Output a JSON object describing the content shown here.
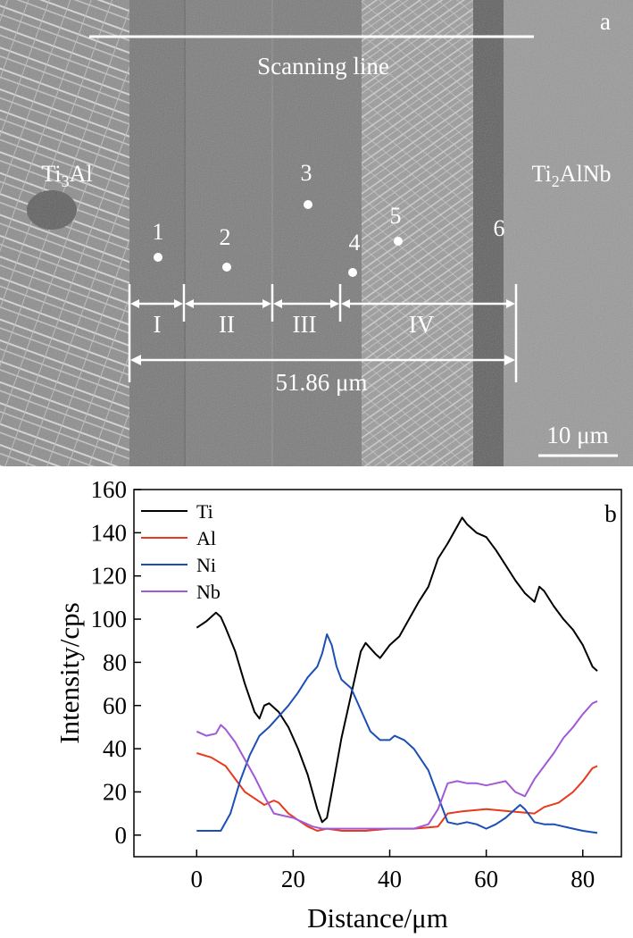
{
  "panel_a": {
    "panel_letter": "a",
    "scanning_line_label": "Scanning line",
    "left_phase": "Ti3Al",
    "right_phase": "Ti2AlNb",
    "points": [
      "1",
      "2",
      "3",
      "4",
      "5",
      "6"
    ],
    "zones": [
      "I",
      "II",
      "III",
      "IV"
    ],
    "width_label": "51.86 μm",
    "scale_bar_label": "10 μm"
  },
  "chart_data": {
    "type": "line",
    "panel_letter": "b",
    "xlabel": "Distance/μm",
    "ylabel": "Intensity/cps",
    "xlim": [
      -13,
      88
    ],
    "ylim": [
      -10,
      160
    ],
    "xticks": [
      0,
      20,
      40,
      60,
      80
    ],
    "yticks": [
      0,
      20,
      40,
      60,
      80,
      100,
      120,
      140,
      160
    ],
    "legend_position": "top-left",
    "grid": false,
    "series": [
      {
        "name": "Ti",
        "color": "#000000",
        "points": [
          [
            0,
            96
          ],
          [
            2,
            99
          ],
          [
            4,
            103
          ],
          [
            5,
            101
          ],
          [
            6,
            96
          ],
          [
            8,
            85
          ],
          [
            10,
            70
          ],
          [
            12,
            57
          ],
          [
            13,
            54
          ],
          [
            14,
            60
          ],
          [
            15,
            61
          ],
          [
            17,
            57
          ],
          [
            19,
            50
          ],
          [
            21,
            40
          ],
          [
            23,
            28
          ],
          [
            25,
            12
          ],
          [
            26,
            6
          ],
          [
            27,
            8
          ],
          [
            28,
            20
          ],
          [
            30,
            45
          ],
          [
            32,
            65
          ],
          [
            34,
            85
          ],
          [
            35,
            89
          ],
          [
            37,
            84
          ],
          [
            38,
            82
          ],
          [
            40,
            88
          ],
          [
            42,
            92
          ],
          [
            44,
            100
          ],
          [
            46,
            108
          ],
          [
            48,
            115
          ],
          [
            50,
            128
          ],
          [
            52,
            135
          ],
          [
            54,
            143
          ],
          [
            55,
            147
          ],
          [
            56,
            144
          ],
          [
            58,
            140
          ],
          [
            60,
            138
          ],
          [
            62,
            132
          ],
          [
            64,
            125
          ],
          [
            66,
            118
          ],
          [
            68,
            112
          ],
          [
            70,
            108
          ],
          [
            71,
            115
          ],
          [
            72,
            113
          ],
          [
            74,
            106
          ],
          [
            76,
            100
          ],
          [
            78,
            95
          ],
          [
            80,
            88
          ],
          [
            82,
            78
          ],
          [
            83,
            76
          ]
        ]
      },
      {
        "name": "Al",
        "color": "#e8391d",
        "points": [
          [
            0,
            38
          ],
          [
            3,
            36
          ],
          [
            6,
            32
          ],
          [
            8,
            26
          ],
          [
            10,
            20
          ],
          [
            12,
            17
          ],
          [
            14,
            14
          ],
          [
            16,
            16
          ],
          [
            17,
            15
          ],
          [
            19,
            10
          ],
          [
            21,
            7
          ],
          [
            23,
            4
          ],
          [
            25,
            2
          ],
          [
            27,
            3
          ],
          [
            30,
            2
          ],
          [
            35,
            2
          ],
          [
            40,
            3
          ],
          [
            45,
            3
          ],
          [
            50,
            4
          ],
          [
            52,
            10
          ],
          [
            55,
            11
          ],
          [
            60,
            12
          ],
          [
            65,
            11
          ],
          [
            70,
            10
          ],
          [
            72,
            13
          ],
          [
            75,
            15
          ],
          [
            78,
            20
          ],
          [
            80,
            25
          ],
          [
            82,
            31
          ],
          [
            83,
            32
          ]
        ]
      },
      {
        "name": "Ni",
        "color": "#1c4fb5",
        "points": [
          [
            0,
            2
          ],
          [
            5,
            2
          ],
          [
            7,
            10
          ],
          [
            9,
            25
          ],
          [
            11,
            37
          ],
          [
            13,
            46
          ],
          [
            15,
            50
          ],
          [
            17,
            55
          ],
          [
            19,
            60
          ],
          [
            21,
            66
          ],
          [
            23,
            73
          ],
          [
            25,
            78
          ],
          [
            26,
            84
          ],
          [
            27,
            93
          ],
          [
            28,
            88
          ],
          [
            29,
            78
          ],
          [
            30,
            72
          ],
          [
            32,
            68
          ],
          [
            34,
            58
          ],
          [
            36,
            48
          ],
          [
            38,
            44
          ],
          [
            40,
            44
          ],
          [
            41,
            46
          ],
          [
            43,
            44
          ],
          [
            45,
            40
          ],
          [
            48,
            30
          ],
          [
            50,
            18
          ],
          [
            52,
            6
          ],
          [
            54,
            5
          ],
          [
            56,
            6
          ],
          [
            58,
            5
          ],
          [
            60,
            3
          ],
          [
            62,
            5
          ],
          [
            64,
            8
          ],
          [
            66,
            12
          ],
          [
            67,
            14
          ],
          [
            68,
            12
          ],
          [
            70,
            6
          ],
          [
            72,
            5
          ],
          [
            74,
            5
          ],
          [
            76,
            4
          ],
          [
            78,
            3
          ],
          [
            80,
            2
          ],
          [
            83,
            1
          ]
        ]
      },
      {
        "name": "Nb",
        "color": "#a05ad6",
        "points": [
          [
            0,
            48
          ],
          [
            2,
            46
          ],
          [
            4,
            47
          ],
          [
            5,
            51
          ],
          [
            6,
            49
          ],
          [
            8,
            43
          ],
          [
            10,
            35
          ],
          [
            12,
            27
          ],
          [
            14,
            18
          ],
          [
            16,
            10
          ],
          [
            18,
            9
          ],
          [
            20,
            8
          ],
          [
            22,
            6
          ],
          [
            24,
            4
          ],
          [
            26,
            3
          ],
          [
            30,
            3
          ],
          [
            35,
            3
          ],
          [
            40,
            3
          ],
          [
            45,
            3
          ],
          [
            48,
            5
          ],
          [
            50,
            12
          ],
          [
            52,
            24
          ],
          [
            54,
            25
          ],
          [
            56,
            24
          ],
          [
            58,
            24
          ],
          [
            60,
            23
          ],
          [
            62,
            24
          ],
          [
            64,
            25
          ],
          [
            66,
            20
          ],
          [
            68,
            18
          ],
          [
            70,
            26
          ],
          [
            72,
            32
          ],
          [
            74,
            38
          ],
          [
            76,
            45
          ],
          [
            78,
            50
          ],
          [
            80,
            56
          ],
          [
            82,
            61
          ],
          [
            83,
            62
          ]
        ]
      }
    ]
  }
}
